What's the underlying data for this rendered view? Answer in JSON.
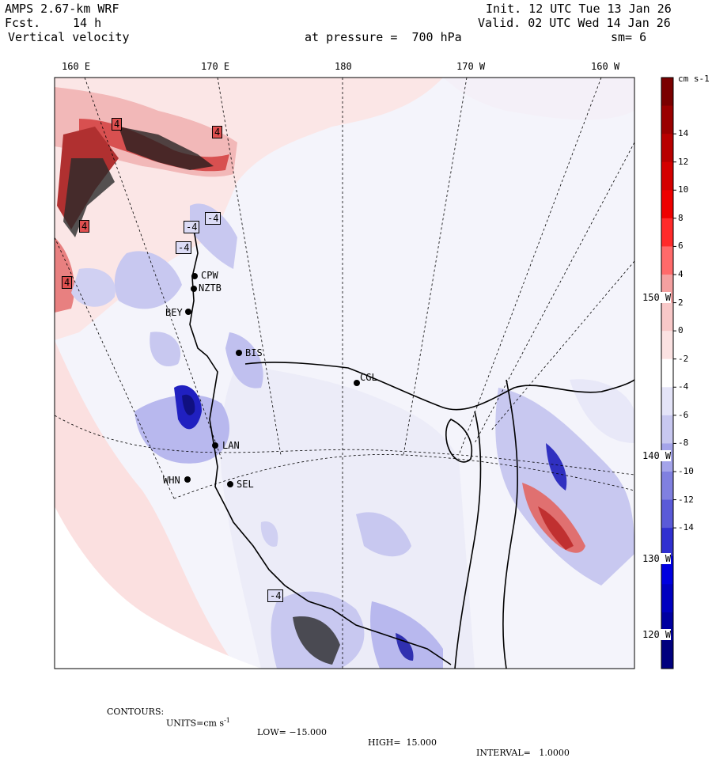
{
  "header": {
    "model": "AMPS 2.67-km WRF",
    "fcst_label": "Fcst.",
    "fcst_value": "14 h",
    "variable": "Vertical velocity",
    "init": "Init. 12 UTC Tue 13 Jan 26",
    "valid": "Valid. 02 UTC Wed 14 Jan 26",
    "level": "at pressure =  700 hPa",
    "smooth": "sm= 6"
  },
  "longitude_labels": [
    "160 E",
    "170 E",
    "180",
    "170 W",
    "160 W"
  ],
  "latitude_labels": [
    "150 W",
    "140 W",
    "130 W",
    "120 W"
  ],
  "stations": [
    "CPW",
    "NZTB",
    "BEY",
    "BIS",
    "CGL",
    "LAN",
    "WHN",
    "SEL"
  ],
  "contour_labels": [
    "4",
    "4",
    "4",
    "4",
    "-4",
    "-4",
    "-4",
    "-4"
  ],
  "colorbar": {
    "units": "cm s-1",
    "ticks": [
      "14",
      "12",
      "10",
      "8",
      "6",
      "4",
      "2",
      "0",
      "-2",
      "-4",
      "-6",
      "-8",
      "-10",
      "-12",
      "-14"
    ],
    "colors": [
      "#7a0000",
      "#9a0000",
      "#b80000",
      "#d40000",
      "#ee0000",
      "#ff2a2a",
      "#ff6a6a",
      "#f4a0a0",
      "#f8c8c8",
      "#fbe2e2",
      "#ffffff",
      "#e4e4f8",
      "#c8c8f0",
      "#a4a4ea",
      "#8080e0",
      "#5a5ad8",
      "#3030d0",
      "#0000e0",
      "#0000c0",
      "#0000a0",
      "#00007e"
    ]
  },
  "footer": {
    "contours": "CONTOURS:",
    "units_label": "UNITS=cm s",
    "units_exp": "-1",
    "low": "LOW= −15.000",
    "high": "HIGH=  15.000",
    "interval": "INTERVAL=   1.0000"
  }
}
